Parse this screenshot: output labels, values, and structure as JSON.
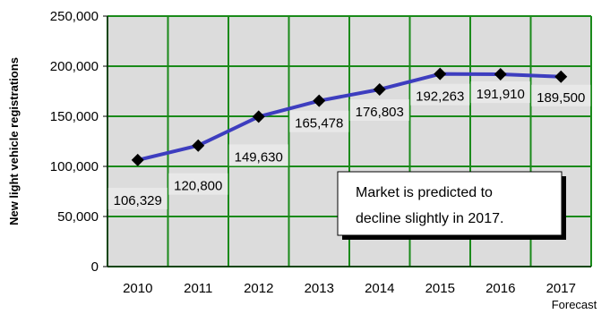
{
  "chart_data": {
    "type": "line",
    "categories": [
      "2010",
      "2011",
      "2012",
      "2013",
      "2014",
      "2015",
      "2016",
      "2017"
    ],
    "series": [
      {
        "values": [
          106329,
          120800,
          149630,
          165478,
          176803,
          192263,
          191910,
          189500
        ]
      }
    ],
    "data_labels": [
      "106,329",
      "120,800",
      "149,630",
      "165,478",
      "176,803",
      "192,263",
      "191,910",
      "189,500"
    ],
    "ylabel": "New light vehicle registrations",
    "xlabel": "",
    "ylim": [
      0,
      250000
    ],
    "yticks": [
      0,
      50000,
      100000,
      150000,
      200000,
      250000
    ],
    "ytick_labels": [
      "0",
      "50,000",
      "100,000",
      "150,000",
      "200,000",
      "250,000"
    ],
    "x_sublabel": "Forecast",
    "annotation": [
      "Market is predicted to",
      "decline slightly in 2017."
    ],
    "grid": true,
    "colors": {
      "line": "#3d3dbf",
      "marker": "#000000",
      "grid": "#1a8a1a",
      "plot_bg": "#dcdcdc",
      "label_bg": "#e8e8e8"
    }
  }
}
